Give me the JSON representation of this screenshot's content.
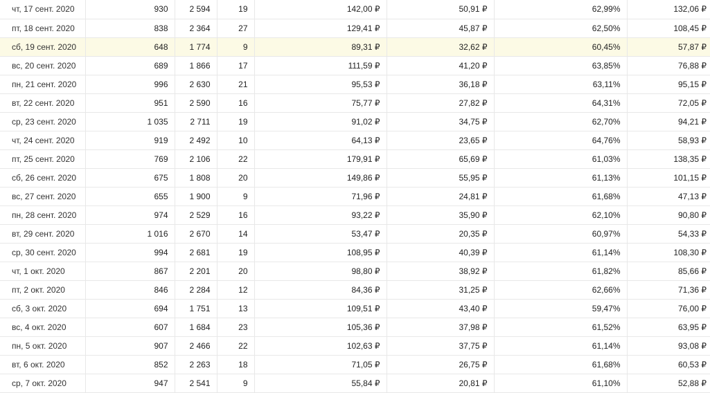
{
  "colors": {
    "row_highlight": "#fcfae5",
    "border": "#e8e8e8",
    "currency_symbol_note": "₽"
  },
  "table": {
    "highlighted_row_index": 2,
    "rows": [
      {
        "date": "чт, 17 сент. 2020",
        "highlighted": false,
        "values": [
          "930",
          "2 594",
          "19",
          "142,00 ₽",
          "50,91 ₽",
          "62,99%",
          "132,06 ₽"
        ]
      },
      {
        "date": "пт, 18 сент. 2020",
        "highlighted": false,
        "values": [
          "838",
          "2 364",
          "27",
          "129,41 ₽",
          "45,87 ₽",
          "62,50%",
          "108,45 ₽"
        ]
      },
      {
        "date": "сб, 19 сент. 2020",
        "highlighted": true,
        "values": [
          "648",
          "1 774",
          "9",
          "89,31 ₽",
          "32,62 ₽",
          "60,45%",
          "57,87 ₽"
        ]
      },
      {
        "date": "вс, 20 сент. 2020",
        "highlighted": false,
        "values": [
          "689",
          "1 866",
          "17",
          "111,59 ₽",
          "41,20 ₽",
          "63,85%",
          "76,88 ₽"
        ]
      },
      {
        "date": "пн, 21 сент. 2020",
        "highlighted": false,
        "values": [
          "996",
          "2 630",
          "21",
          "95,53 ₽",
          "36,18 ₽",
          "63,11%",
          "95,15 ₽"
        ]
      },
      {
        "date": "вт, 22 сент. 2020",
        "highlighted": false,
        "values": [
          "951",
          "2 590",
          "16",
          "75,77 ₽",
          "27,82 ₽",
          "64,31%",
          "72,05 ₽"
        ]
      },
      {
        "date": "ср, 23 сент. 2020",
        "highlighted": false,
        "values": [
          "1 035",
          "2 711",
          "19",
          "91,02 ₽",
          "34,75 ₽",
          "62,70%",
          "94,21 ₽"
        ]
      },
      {
        "date": "чт, 24 сент. 2020",
        "highlighted": false,
        "values": [
          "919",
          "2 492",
          "10",
          "64,13 ₽",
          "23,65 ₽",
          "64,76%",
          "58,93 ₽"
        ]
      },
      {
        "date": "пт, 25 сент. 2020",
        "highlighted": false,
        "values": [
          "769",
          "2 106",
          "22",
          "179,91 ₽",
          "65,69 ₽",
          "61,03%",
          "138,35 ₽"
        ]
      },
      {
        "date": "сб, 26 сент. 2020",
        "highlighted": false,
        "values": [
          "675",
          "1 808",
          "20",
          "149,86 ₽",
          "55,95 ₽",
          "61,13%",
          "101,15 ₽"
        ]
      },
      {
        "date": "вс, 27 сент. 2020",
        "highlighted": false,
        "values": [
          "655",
          "1 900",
          "9",
          "71,96 ₽",
          "24,81 ₽",
          "61,68%",
          "47,13 ₽"
        ]
      },
      {
        "date": "пн, 28 сент. 2020",
        "highlighted": false,
        "values": [
          "974",
          "2 529",
          "16",
          "93,22 ₽",
          "35,90 ₽",
          "62,10%",
          "90,80 ₽"
        ]
      },
      {
        "date": "вт, 29 сент. 2020",
        "highlighted": false,
        "values": [
          "1 016",
          "2 670",
          "14",
          "53,47 ₽",
          "20,35 ₽",
          "60,97%",
          "54,33 ₽"
        ]
      },
      {
        "date": "ср, 30 сент. 2020",
        "highlighted": false,
        "values": [
          "994",
          "2 681",
          "19",
          "108,95 ₽",
          "40,39 ₽",
          "61,14%",
          "108,30 ₽"
        ]
      },
      {
        "date": "чт, 1 окт. 2020",
        "highlighted": false,
        "values": [
          "867",
          "2 201",
          "20",
          "98,80 ₽",
          "38,92 ₽",
          "61,82%",
          "85,66 ₽"
        ]
      },
      {
        "date": "пт, 2 окт. 2020",
        "highlighted": false,
        "values": [
          "846",
          "2 284",
          "12",
          "84,36 ₽",
          "31,25 ₽",
          "62,66%",
          "71,36 ₽"
        ]
      },
      {
        "date": "сб, 3 окт. 2020",
        "highlighted": false,
        "values": [
          "694",
          "1 751",
          "13",
          "109,51 ₽",
          "43,40 ₽",
          "59,47%",
          "76,00 ₽"
        ]
      },
      {
        "date": "вс, 4 окт. 2020",
        "highlighted": false,
        "values": [
          "607",
          "1 684",
          "23",
          "105,36 ₽",
          "37,98 ₽",
          "61,52%",
          "63,95 ₽"
        ]
      },
      {
        "date": "пн, 5 окт. 2020",
        "highlighted": false,
        "values": [
          "907",
          "2 466",
          "22",
          "102,63 ₽",
          "37,75 ₽",
          "61,14%",
          "93,08 ₽"
        ]
      },
      {
        "date": "вт, 6 окт. 2020",
        "highlighted": false,
        "values": [
          "852",
          "2 263",
          "18",
          "71,05 ₽",
          "26,75 ₽",
          "61,68%",
          "60,53 ₽"
        ]
      },
      {
        "date": "ср, 7 окт. 2020",
        "highlighted": false,
        "values": [
          "947",
          "2 541",
          "9",
          "55,84 ₽",
          "20,81 ₽",
          "61,10%",
          "52,88 ₽"
        ]
      }
    ]
  }
}
